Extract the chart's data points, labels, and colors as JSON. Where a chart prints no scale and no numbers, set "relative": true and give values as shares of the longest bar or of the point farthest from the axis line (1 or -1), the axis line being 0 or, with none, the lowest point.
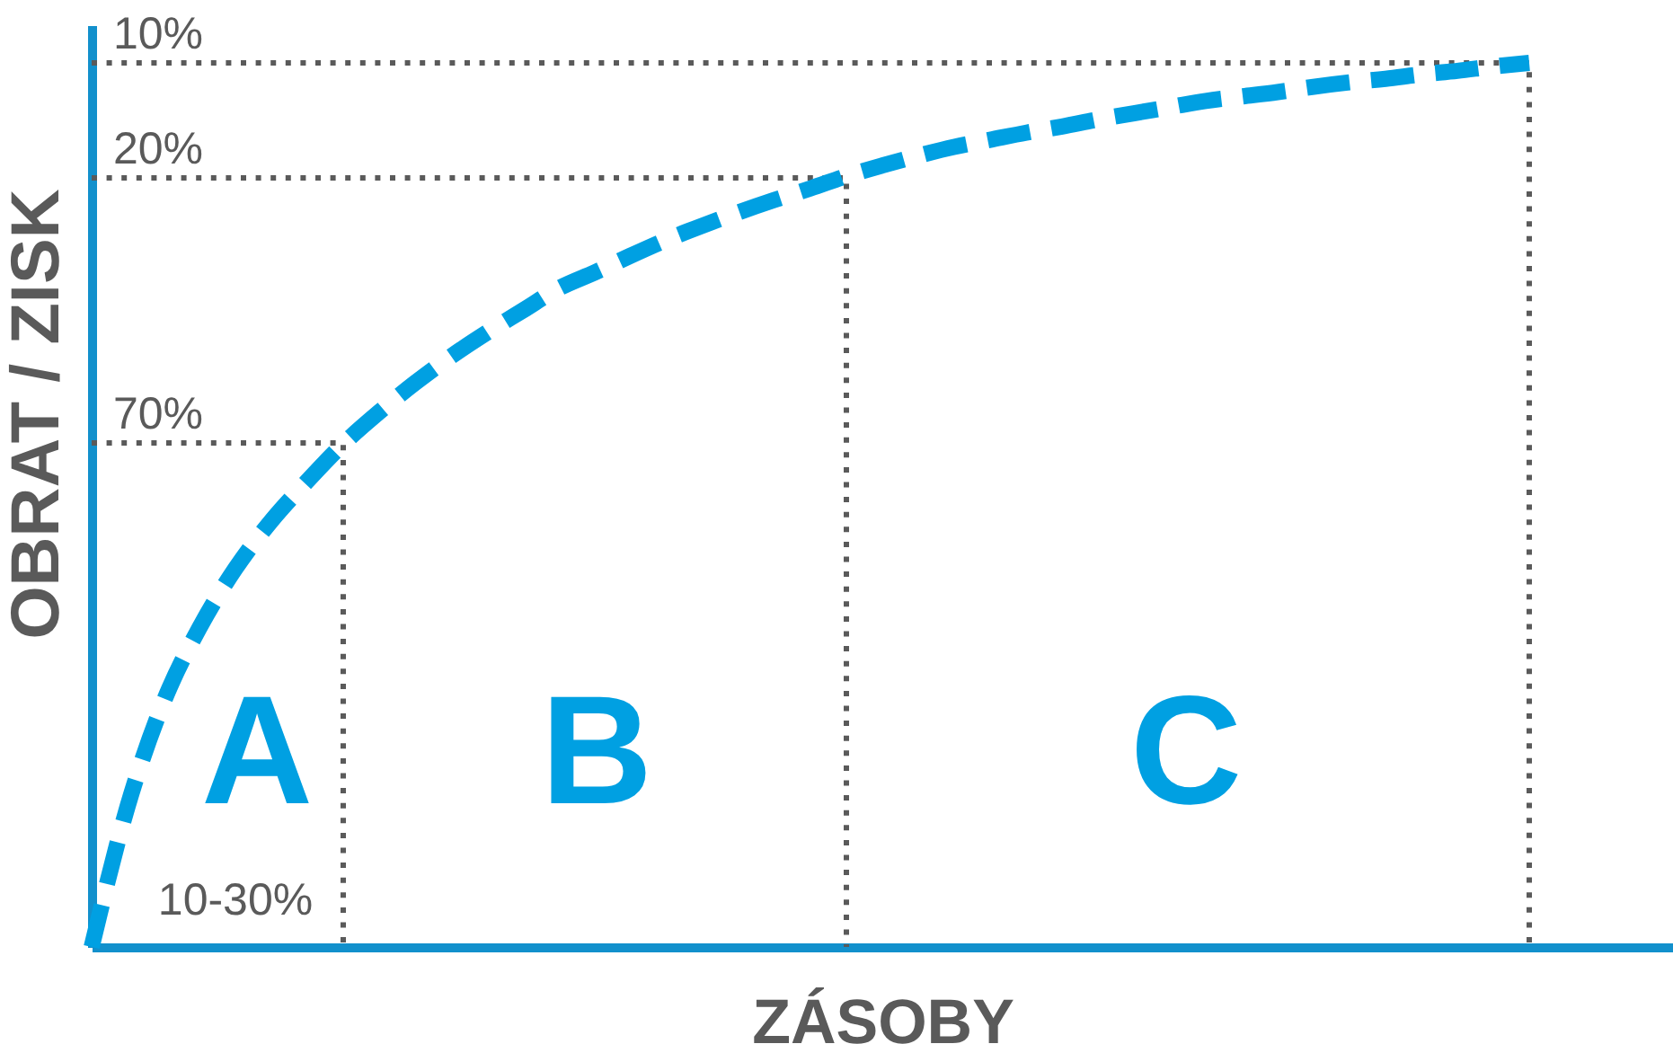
{
  "chart_data": {
    "type": "line",
    "relative": true,
    "xlabel": "ZÁSOBY",
    "ylabel": "OBRAT / ZISK",
    "categories": [
      null,
      null,
      null,
      null,
      null,
      null,
      null,
      null,
      null,
      null,
      null,
      null,
      null,
      null,
      null,
      null,
      null,
      null,
      null,
      null,
      null,
      null,
      null,
      null,
      null,
      null,
      null,
      null,
      null,
      null,
      null,
      null,
      null,
      null,
      null,
      null,
      null,
      null,
      null,
      null,
      null,
      null,
      null,
      null,
      null
    ],
    "series": [
      {
        "color": "#00a0e2",
        "values": [
          0,
          0.159,
          0.277,
          0.361,
          0.428,
          0.482,
          0.527,
          0.569,
          0.605,
          0.638,
          0.668,
          0.695,
          0.72,
          0.745,
          0.763,
          0.782,
          0.8,
          0.816,
          0.831,
          0.845,
          0.858,
          0.872,
          0.884,
          0.895,
          0.905,
          0.913,
          0.921,
          0.928,
          0.936,
          0.943,
          0.95,
          0.957,
          0.962,
          0.967,
          0.973,
          0.978,
          0.982,
          0.987,
          0.991,
          0.996,
          1,
          null,
          null,
          null,
          null
        ]
      },
      {
        "name": "70%",
        "type": "step",
        "line_style": "dotted",
        "color": "#5a5a5a",
        "values": [
          0.57,
          0.57,
          0.57,
          0.57,
          0.57,
          0.57,
          0.57,
          0,
          null,
          null,
          null,
          null,
          null,
          null,
          null,
          null,
          null,
          null,
          null,
          null,
          null,
          null,
          null,
          null,
          null,
          null,
          null,
          null,
          null,
          null,
          null,
          null,
          null,
          null,
          null,
          null,
          null,
          null,
          null,
          null,
          null,
          null,
          null,
          null,
          null
        ]
      },
      {
        "name": "20%",
        "type": "step",
        "line_style": "dotted",
        "color": "#5a5a5a",
        "values": [
          0.87,
          0.87,
          0.87,
          0.87,
          0.87,
          0.87,
          0.87,
          0.87,
          0.87,
          0.87,
          0.87,
          0.87,
          0.87,
          0.87,
          0.87,
          0.87,
          0.87,
          0.87,
          0.87,
          0.87,
          0.87,
          0,
          null,
          null,
          null,
          null,
          null,
          null,
          null,
          null,
          null,
          null,
          null,
          null,
          null,
          null,
          null,
          null,
          null,
          null,
          null,
          null,
          null,
          null,
          null
        ]
      },
      {
        "name": "10%",
        "type": "step",
        "line_style": "dotted",
        "color": "#5a5a5a",
        "values": [
          1,
          1,
          1,
          1,
          1,
          1,
          1,
          1,
          1,
          1,
          1,
          1,
          1,
          1,
          1,
          1,
          1,
          1,
          1,
          1,
          1,
          1,
          1,
          1,
          1,
          1,
          1,
          1,
          1,
          1,
          1,
          1,
          1,
          1,
          1,
          1,
          1,
          1,
          1,
          1,
          0,
          null,
          null,
          null,
          null
        ]
      }
    ],
    "annotations": [
      "A",
      "B",
      "C",
      "10-30%"
    ],
    "line_style": "dashed",
    "legend": false
  }
}
